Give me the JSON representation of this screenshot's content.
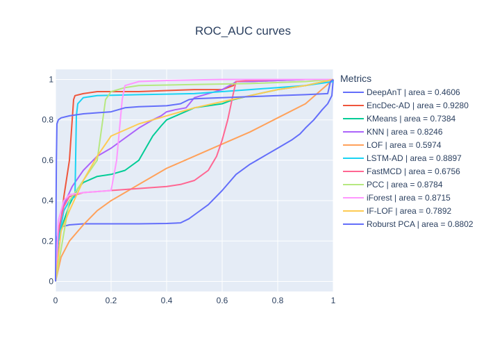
{
  "chart_data": {
    "type": "line",
    "title": "ROC_AUC curves",
    "xlabel": "",
    "ylabel": "",
    "xlim": [
      0,
      1
    ],
    "ylim": [
      -0.05,
      1.05
    ],
    "x_ticks": [
      "0",
      "0.2",
      "0.4",
      "0.6",
      "0.8",
      "1"
    ],
    "y_ticks": [
      "0",
      "0.2",
      "0.4",
      "0.6",
      "0.8",
      "1"
    ],
    "grid": true,
    "legend_title": "Metrics",
    "legend_position": "right",
    "series": [
      {
        "name": "DeepAnT | area = 0.4606",
        "color": "#636efa",
        "x": [
          0,
          0.005,
          0.01,
          0.02,
          0.05,
          0.1,
          0.2,
          0.3,
          0.4,
          0.45,
          0.48,
          0.5,
          0.55,
          0.6,
          0.65,
          0.7,
          0.75,
          0.8,
          0.85,
          0.88,
          0.9,
          0.93,
          0.96,
          0.98,
          0.995,
          1
        ],
        "y": [
          0,
          0.2,
          0.26,
          0.27,
          0.28,
          0.285,
          0.285,
          0.285,
          0.287,
          0.29,
          0.31,
          0.33,
          0.38,
          0.45,
          0.53,
          0.58,
          0.62,
          0.66,
          0.7,
          0.73,
          0.76,
          0.8,
          0.85,
          0.88,
          0.92,
          1
        ]
      },
      {
        "name": "EncDec-AD | area = 0.9280",
        "color": "#ef553b",
        "x": [
          0,
          0.01,
          0.02,
          0.03,
          0.05,
          0.06,
          0.065,
          0.07,
          0.1,
          0.15,
          0.2,
          0.3,
          0.4,
          0.5,
          0.6,
          0.64,
          0.65,
          0.7,
          0.8,
          0.9,
          1
        ],
        "y": [
          0,
          0.2,
          0.3,
          0.42,
          0.6,
          0.8,
          0.9,
          0.92,
          0.93,
          0.94,
          0.94,
          0.94,
          0.945,
          0.95,
          0.95,
          0.97,
          0.99,
          0.99,
          0.995,
          1,
          1
        ]
      },
      {
        "name": "KMeans | area = 0.7384",
        "color": "#00cc96",
        "x": [
          0,
          0.01,
          0.03,
          0.05,
          0.08,
          0.1,
          0.15,
          0.2,
          0.25,
          0.3,
          0.35,
          0.38,
          0.4,
          0.45,
          0.5,
          0.55,
          0.6,
          0.64,
          0.7,
          0.8,
          0.9,
          1
        ],
        "y": [
          0,
          0.2,
          0.3,
          0.38,
          0.46,
          0.49,
          0.52,
          0.53,
          0.55,
          0.6,
          0.72,
          0.77,
          0.8,
          0.83,
          0.86,
          0.87,
          0.88,
          0.9,
          0.92,
          0.95,
          0.97,
          1
        ]
      },
      {
        "name": "KNN | area = 0.8246",
        "color": "#ab63fa",
        "x": [
          0,
          0.01,
          0.03,
          0.06,
          0.1,
          0.15,
          0.2,
          0.25,
          0.3,
          0.35,
          0.38,
          0.4,
          0.43,
          0.47,
          0.5,
          0.55,
          0.6,
          0.64,
          0.65,
          0.7,
          0.8,
          0.9,
          1
        ],
        "y": [
          0,
          0.25,
          0.38,
          0.47,
          0.55,
          0.62,
          0.66,
          0.71,
          0.76,
          0.8,
          0.82,
          0.84,
          0.85,
          0.86,
          0.91,
          0.93,
          0.95,
          0.98,
          0.99,
          0.99,
          0.995,
          1,
          1
        ]
      },
      {
        "name": "LOF | area = 0.5974",
        "color": "#ffa15a",
        "x": [
          0,
          0.02,
          0.05,
          0.1,
          0.15,
          0.2,
          0.25,
          0.3,
          0.4,
          0.5,
          0.6,
          0.7,
          0.8,
          0.9,
          1
        ],
        "y": [
          0,
          0.12,
          0.2,
          0.28,
          0.35,
          0.4,
          0.44,
          0.48,
          0.56,
          0.62,
          0.68,
          0.74,
          0.81,
          0.88,
          1
        ]
      },
      {
        "name": "LSTM-AD | area = 0.8897",
        "color": "#19d3f3",
        "x": [
          0,
          0.01,
          0.03,
          0.05,
          0.07,
          0.075,
          0.08,
          0.1,
          0.15,
          0.3,
          0.5,
          0.7,
          0.8,
          0.9,
          1
        ],
        "y": [
          0,
          0.2,
          0.35,
          0.4,
          0.42,
          0.82,
          0.88,
          0.91,
          0.92,
          0.925,
          0.93,
          0.95,
          0.96,
          0.97,
          0.99
        ]
      },
      {
        "name": "FastMCD | area = 0.6756",
        "color": "#ff6692",
        "x": [
          0,
          0.01,
          0.03,
          0.05,
          0.1,
          0.2,
          0.3,
          0.4,
          0.45,
          0.5,
          0.55,
          0.58,
          0.6,
          0.62,
          0.64,
          0.65,
          0.7,
          0.8,
          1
        ],
        "y": [
          0,
          0.25,
          0.37,
          0.42,
          0.44,
          0.45,
          0.46,
          0.47,
          0.48,
          0.5,
          0.55,
          0.62,
          0.7,
          0.8,
          0.93,
          0.99,
          0.995,
          1,
          1
        ]
      },
      {
        "name": "PCC | area = 0.8784",
        "color": "#b6e880",
        "x": [
          0,
          0.05,
          0.1,
          0.15,
          0.17,
          0.18,
          0.2,
          0.25,
          0.3,
          0.5,
          0.7,
          0.9,
          1
        ],
        "y": [
          0,
          0.4,
          0.5,
          0.6,
          0.8,
          0.9,
          0.94,
          0.96,
          0.97,
          0.975,
          0.98,
          0.99,
          1
        ]
      },
      {
        "name": "iForest | area = 0.8715",
        "color": "#ff97ff",
        "x": [
          0,
          0.01,
          0.03,
          0.05,
          0.1,
          0.2,
          0.22,
          0.24,
          0.25,
          0.3,
          0.4,
          0.6,
          0.8,
          1
        ],
        "y": [
          0,
          0.3,
          0.4,
          0.43,
          0.44,
          0.45,
          0.6,
          0.9,
          0.97,
          0.99,
          0.995,
          1,
          1,
          1
        ]
      },
      {
        "name": "IF-LOF | area = 0.7892",
        "color": "#fecb52",
        "x": [
          0,
          0.02,
          0.05,
          0.1,
          0.15,
          0.2,
          0.3,
          0.4,
          0.5,
          0.6,
          0.7,
          0.8,
          0.9,
          1
        ],
        "y": [
          0,
          0.25,
          0.35,
          0.5,
          0.62,
          0.72,
          0.78,
          0.82,
          0.86,
          0.89,
          0.92,
          0.95,
          0.97,
          1
        ]
      },
      {
        "name": "Roburst PCA | area = 0.8802",
        "color": "#636efa",
        "x": [
          0,
          0.003,
          0.005,
          0.01,
          0.02,
          0.05,
          0.1,
          0.15,
          0.2,
          0.25,
          0.3,
          0.4,
          0.45,
          0.48,
          0.5,
          0.6,
          0.7,
          0.8,
          0.9,
          0.98,
          0.99,
          1
        ],
        "y": [
          0,
          0.6,
          0.78,
          0.8,
          0.81,
          0.82,
          0.83,
          0.835,
          0.84,
          0.86,
          0.865,
          0.87,
          0.88,
          0.9,
          0.905,
          0.91,
          0.915,
          0.92,
          0.925,
          0.93,
          0.99,
          1
        ]
      }
    ]
  }
}
